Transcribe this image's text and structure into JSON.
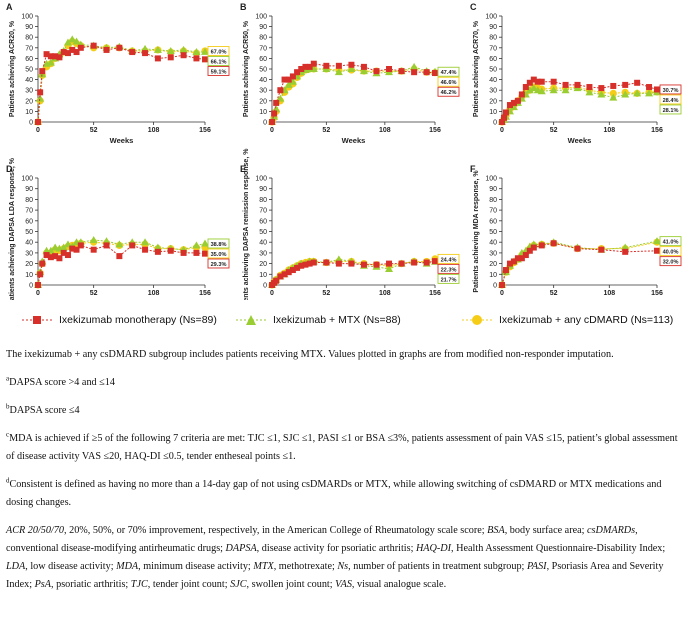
{
  "colors": {
    "red": "#d7302a",
    "green": "#9acd32",
    "yellow": "#f5cd18"
  },
  "legend": [
    {
      "key": "red",
      "label": "Ixekizumab monotherapy (Ns=89)"
    },
    {
      "key": "green",
      "label": "Ixekizumab + MTX (Ns=88)"
    },
    {
      "key": "yellow",
      "label": "Ixekizumab + any cDMARD (Ns=113)"
    }
  ],
  "chart_data": [
    {
      "type": "line",
      "panel": "A",
      "ylabel": "Patients achieving ACR20, %",
      "xlabel": "Weeks",
      "xticks": [
        0,
        52,
        108,
        156
      ],
      "yticks": [
        0,
        10,
        20,
        30,
        40,
        50,
        60,
        70,
        80,
        90,
        100
      ],
      "xlim": [
        0,
        156
      ],
      "ylim": [
        0,
        100
      ],
      "end_labels": [
        {
          "text": "67.0%",
          "series": "yellow",
          "y": 67.0
        },
        {
          "text": "66.1%",
          "series": "green",
          "y": 66.1
        },
        {
          "text": "59.1%",
          "series": "red",
          "y": 59.1
        }
      ],
      "x": [
        0,
        2,
        4,
        8,
        12,
        16,
        20,
        24,
        28,
        32,
        36,
        40,
        52,
        64,
        76,
        88,
        100,
        112,
        124,
        136,
        148,
        156
      ],
      "series": [
        {
          "name": "red",
          "values": [
            0,
            28,
            48,
            64,
            62,
            62,
            61,
            66,
            65,
            68,
            66,
            70,
            72,
            68,
            70,
            66,
            65,
            60,
            61,
            63,
            60,
            59.1
          ]
        },
        {
          "name": "green",
          "values": [
            0,
            22,
            45,
            55,
            56,
            60,
            64,
            67,
            75,
            78,
            76,
            73,
            72,
            70,
            71,
            67,
            69,
            68,
            67,
            68,
            66,
            66.1
          ]
        },
        {
          "name": "yellow",
          "values": [
            0,
            20,
            44,
            52,
            55,
            60,
            62,
            66,
            72,
            76,
            74,
            72,
            70,
            70,
            70,
            67,
            67,
            68,
            66,
            67,
            65,
            67.0
          ]
        }
      ]
    },
    {
      "type": "line",
      "panel": "B",
      "ylabel": "Patients achieving ACR50, %",
      "xlabel": "Weeks",
      "xticks": [
        0,
        52,
        108,
        156
      ],
      "yticks": [
        0,
        10,
        20,
        30,
        40,
        50,
        60,
        70,
        80,
        90,
        100
      ],
      "xlim": [
        0,
        156
      ],
      "ylim": [
        0,
        100
      ],
      "end_labels": [
        {
          "text": "47.4%",
          "series": "green",
          "y": 47.4
        },
        {
          "text": "46.6%",
          "series": "yellow",
          "y": 46.6
        },
        {
          "text": "46.2%",
          "series": "red",
          "y": 46.2
        }
      ],
      "x": [
        0,
        2,
        4,
        8,
        12,
        16,
        20,
        24,
        28,
        32,
        36,
        40,
        52,
        64,
        76,
        88,
        100,
        112,
        124,
        136,
        148,
        156
      ],
      "series": [
        {
          "name": "red",
          "values": [
            0,
            8,
            18,
            30,
            40,
            40,
            43,
            47,
            50,
            52,
            52,
            55,
            53,
            53,
            54,
            52,
            48,
            50,
            48,
            47,
            47,
            46.2
          ]
        },
        {
          "name": "green",
          "values": [
            0,
            5,
            12,
            22,
            30,
            35,
            38,
            43,
            47,
            49,
            50,
            50,
            50,
            47,
            50,
            48,
            46,
            47,
            48,
            52,
            48,
            47.4
          ]
        },
        {
          "name": "yellow",
          "values": [
            0,
            4,
            10,
            20,
            28,
            33,
            36,
            42,
            46,
            49,
            50,
            50,
            50,
            49,
            49,
            48,
            48,
            48,
            48,
            50,
            47,
            46.6
          ]
        }
      ]
    },
    {
      "type": "line",
      "panel": "C",
      "ylabel": "Patients achieving ACR70, %",
      "xlabel": "Weeks",
      "xticks": [
        0,
        52,
        108,
        156
      ],
      "yticks": [
        0,
        10,
        20,
        30,
        40,
        50,
        60,
        70,
        80,
        90,
        100
      ],
      "xlim": [
        0,
        156
      ],
      "ylim": [
        0,
        100
      ],
      "end_labels": [
        {
          "text": "30.7%",
          "series": "red",
          "y": 30.7
        },
        {
          "text": "28.4%",
          "series": "yellow",
          "y": 28.4
        },
        {
          "text": "28.1%",
          "series": "green",
          "y": 28.1
        }
      ],
      "x": [
        0,
        2,
        4,
        8,
        12,
        16,
        20,
        24,
        28,
        32,
        36,
        40,
        52,
        64,
        76,
        88,
        100,
        112,
        124,
        136,
        148,
        156
      ],
      "series": [
        {
          "name": "red",
          "values": [
            0,
            4,
            9,
            16,
            18,
            20,
            26,
            33,
            37,
            40,
            38,
            38,
            38,
            35,
            35,
            33,
            32,
            34,
            35,
            37,
            33,
            30.7
          ]
        },
        {
          "name": "green",
          "values": [
            0,
            2,
            5,
            10,
            14,
            18,
            22,
            26,
            30,
            32,
            30,
            29,
            30,
            30,
            32,
            28,
            26,
            23,
            26,
            27,
            27,
            28.1
          ]
        },
        {
          "name": "yellow",
          "values": [
            0,
            3,
            6,
            12,
            16,
            20,
            24,
            28,
            30,
            33,
            32,
            31,
            32,
            32,
            33,
            30,
            28,
            27,
            28,
            27,
            28,
            28.4
          ]
        }
      ]
    },
    {
      "type": "line",
      "panel": "D",
      "ylabel": "Patients achieving DAPSA LDA response, %",
      "xlabel": "Weeks",
      "xticks": [
        0,
        52,
        108,
        156
      ],
      "yticks": [
        0,
        10,
        20,
        30,
        40,
        50,
        60,
        70,
        80,
        90,
        100
      ],
      "xlim": [
        0,
        156
      ],
      "ylim": [
        0,
        100
      ],
      "end_labels": [
        {
          "text": "38.8%",
          "series": "green",
          "y": 38.8
        },
        {
          "text": "35.0%",
          "series": "yellow",
          "y": 35.0
        },
        {
          "text": "29.3%",
          "series": "red",
          "y": 29.3
        }
      ],
      "x": [
        0,
        2,
        4,
        8,
        12,
        16,
        20,
        24,
        28,
        32,
        36,
        40,
        52,
        64,
        76,
        88,
        100,
        112,
        124,
        136,
        148,
        156
      ],
      "series": [
        {
          "name": "red",
          "values": [
            0,
            10,
            20,
            28,
            26,
            27,
            25,
            30,
            28,
            34,
            33,
            37,
            33,
            37,
            27,
            37,
            33,
            31,
            32,
            30,
            30,
            29.3
          ]
        },
        {
          "name": "green",
          "values": [
            0,
            12,
            22,
            32,
            32,
            35,
            34,
            35,
            38,
            36,
            40,
            40,
            42,
            41,
            38,
            40,
            40,
            35,
            34,
            33,
            37,
            38.8
          ]
        },
        {
          "name": "yellow",
          "values": [
            0,
            11,
            20,
            30,
            30,
            33,
            32,
            34,
            36,
            37,
            38,
            39,
            40,
            39,
            37,
            38,
            38,
            34,
            34,
            33,
            35,
            35.0
          ]
        }
      ]
    },
    {
      "type": "line",
      "panel": "E",
      "ylabel": "Patients achieving DAPSA remission response, %",
      "xlabel": "Weeks",
      "xticks": [
        0,
        52,
        108,
        156
      ],
      "yticks": [
        0,
        10,
        20,
        30,
        40,
        50,
        60,
        70,
        80,
        90,
        100
      ],
      "xlim": [
        0,
        156
      ],
      "ylim": [
        0,
        100
      ],
      "end_labels": [
        {
          "text": "24.4%",
          "series": "yellow",
          "y": 24.4
        },
        {
          "text": "22.3%",
          "series": "red",
          "y": 22.3
        },
        {
          "text": "21.7%",
          "series": "green",
          "y": 21.7
        }
      ],
      "x": [
        0,
        2,
        4,
        8,
        12,
        16,
        20,
        24,
        28,
        32,
        36,
        40,
        52,
        64,
        76,
        88,
        100,
        112,
        124,
        136,
        148,
        156
      ],
      "series": [
        {
          "name": "red",
          "values": [
            0,
            2,
            4,
            8,
            10,
            12,
            14,
            16,
            18,
            19,
            20,
            21,
            21,
            20,
            20,
            19,
            19,
            20,
            20,
            21,
            21,
            22.3
          ]
        },
        {
          "name": "green",
          "values": [
            0,
            3,
            5,
            8,
            10,
            14,
            16,
            18,
            20,
            20,
            22,
            22,
            21,
            24,
            22,
            18,
            17,
            15,
            20,
            22,
            20,
            21.7
          ]
        },
        {
          "name": "yellow",
          "values": [
            0,
            3,
            5,
            9,
            11,
            14,
            16,
            18,
            20,
            21,
            22,
            22,
            21,
            22,
            22,
            20,
            19,
            18,
            20,
            22,
            22,
            24.4
          ]
        }
      ]
    },
    {
      "type": "line",
      "panel": "F",
      "ylabel": "Patients achieving MDA response, %",
      "xlabel": "Weeks",
      "xticks": [
        0,
        52,
        108,
        156
      ],
      "yticks": [
        0,
        10,
        20,
        30,
        40,
        50,
        60,
        70,
        80,
        90,
        100
      ],
      "xlim": [
        0,
        156
      ],
      "ylim": [
        0,
        100
      ],
      "end_labels": [
        {
          "text": "41.0%",
          "series": "green",
          "y": 41.0
        },
        {
          "text": "40.0%",
          "series": "yellow",
          "y": 40.0
        },
        {
          "text": "32.0%",
          "series": "red",
          "y": 32.0
        }
      ],
      "x": [
        0,
        4,
        8,
        12,
        16,
        20,
        24,
        28,
        32,
        40,
        52,
        76,
        100,
        124,
        156
      ],
      "series": [
        {
          "name": "red",
          "values": [
            0,
            14,
            20,
            22,
            25,
            25,
            28,
            32,
            35,
            37,
            39,
            34,
            33,
            31,
            32.0
          ]
        },
        {
          "name": "green",
          "values": [
            0,
            12,
            18,
            22,
            24,
            30,
            32,
            36,
            38,
            38,
            40,
            35,
            33,
            35,
            41.0
          ]
        },
        {
          "name": "yellow",
          "values": [
            0,
            12,
            17,
            21,
            24,
            28,
            30,
            34,
            37,
            38,
            39,
            34,
            34,
            34,
            40.0
          ]
        }
      ]
    }
  ],
  "notes": {
    "intro": "The ixekizumab + any csDMARD subgroup includes patients receiving MTX. Values plotted in graphs are from modified non-responder imputation.",
    "a_mark": "a",
    "a_text": "DAPSA score >4 and ≤14",
    "b_mark": "b",
    "b_text": "DAPSA score ≤4",
    "c_mark": "c",
    "c_text": "MDA is achieved if ≥5 of the following 7 criteria are met: TJC ≤1, SJC ≤1, PASI ≤1 or BSA ≤3%, patients assessment of pain VAS ≤15, patient’s global assessment of disease activity VAS ≤20, HAQ-DI ≤0.5, tender entheseal points ≤1.",
    "d_mark": "d",
    "d_text": "Consistent is defined as having no more than a 14-day gap of not using csDMARDs or MTX, while allowing switching of csDMARD or MTX medications and dosing changes.",
    "abbreviations": [
      {
        "term": "ACR 20/50/70",
        "def": ", 20%, 50%, or 70% improvement, respectively, in the American College of Rheumatology scale score; "
      },
      {
        "term": "BSA",
        "def": ", body surface area; "
      },
      {
        "term": "csDMARDs",
        "def": ", conventional disease-modifying antirheumatic drugs; "
      },
      {
        "term": "DAPSA",
        "def": ", disease activity for psoriatic arthritis; "
      },
      {
        "term": "HAQ-DI",
        "def": ", Health Assessment Questionnaire-Disability Index; "
      },
      {
        "term": "LDA",
        "def": ", low disease activity; "
      },
      {
        "term": "MDA",
        "def": ", minimum disease activity; "
      },
      {
        "term": "MTX",
        "def": ", methotrexate; "
      },
      {
        "term": "Ns",
        "def": ", number of patients in treatment subgroup; "
      },
      {
        "term": "PASI",
        "def": ", Psoriasis Area and Severity Index; "
      },
      {
        "term": "PsA",
        "def": ", psoriatic arthritis; "
      },
      {
        "term": "TJC",
        "def": ", tender joint count; "
      },
      {
        "term": "SJC",
        "def": ", swollen joint count; "
      },
      {
        "term": "VAS",
        "def": ", visual analogue scale."
      }
    ]
  }
}
